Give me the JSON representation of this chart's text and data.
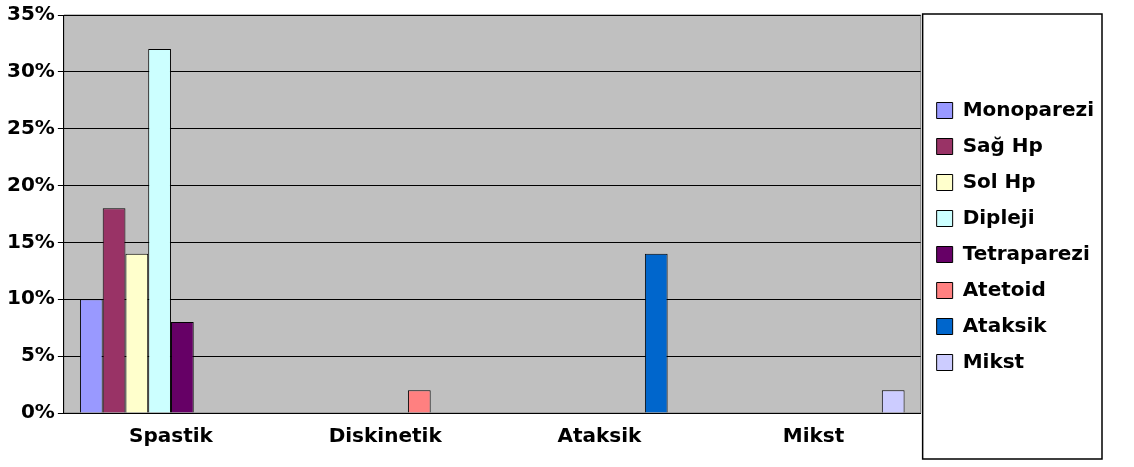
{
  "chart_data": {
    "type": "bar",
    "categories": [
      "Spastik",
      "Diskinetik",
      "Ataksik",
      "Mikst"
    ],
    "series": [
      {
        "name": "Monoparezi",
        "color": "#9999ff",
        "values": [
          10,
          null,
          null,
          null
        ]
      },
      {
        "name": "Sağ Hp",
        "color": "#993366",
        "values": [
          18,
          null,
          null,
          null
        ]
      },
      {
        "name": "Sol Hp",
        "color": "#ffffcc",
        "values": [
          14,
          null,
          null,
          null
        ]
      },
      {
        "name": "Dipleji",
        "color": "#ccffff",
        "values": [
          32,
          null,
          null,
          null
        ]
      },
      {
        "name": "Tetraparezi",
        "color": "#660066",
        "values": [
          8,
          null,
          null,
          null
        ]
      },
      {
        "name": "Atetoid",
        "color": "#ff8080",
        "values": [
          null,
          2,
          null,
          null
        ]
      },
      {
        "name": "Ataksik",
        "color": "#0066cc",
        "values": [
          null,
          null,
          14,
          null
        ]
      },
      {
        "name": "Mikst",
        "color": "#ccccff",
        "values": [
          null,
          null,
          null,
          2
        ]
      }
    ],
    "ylim": [
      0,
      35
    ],
    "yticks": [
      {
        "value": 0,
        "label": "0%"
      },
      {
        "value": 5,
        "label": "5%"
      },
      {
        "value": 10,
        "label": "10%"
      },
      {
        "value": 15,
        "label": "15%"
      },
      {
        "value": 20,
        "label": "20%"
      },
      {
        "value": 25,
        "label": "25%"
      },
      {
        "value": 30,
        "label": "30%"
      },
      {
        "value": 35,
        "label": "35%"
      }
    ],
    "grid": "y",
    "legend": "right"
  }
}
